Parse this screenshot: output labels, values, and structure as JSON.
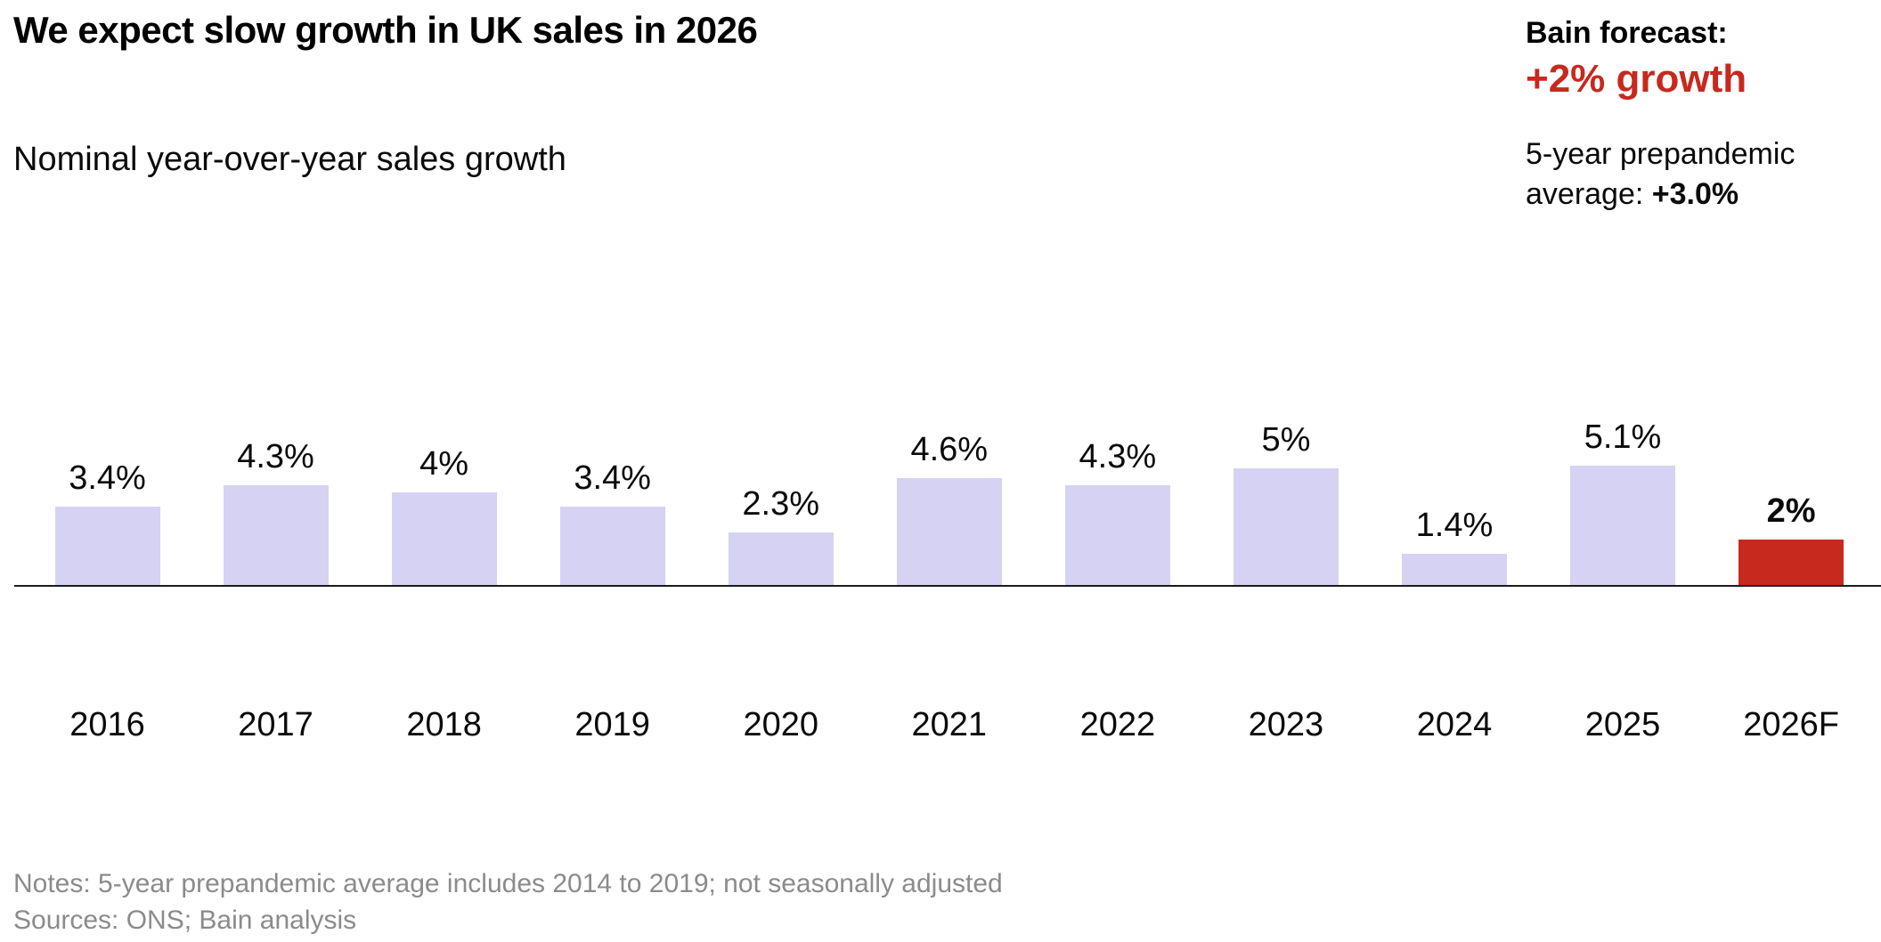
{
  "header": {
    "title": "We expect slow growth in UK sales in 2026",
    "subtitle": "Nominal year-over-year sales growth"
  },
  "annotation": {
    "forecast_label": "Bain forecast:",
    "forecast_value": "+2% growth",
    "average_line1": "5-year prepandemic",
    "average_line2_prefix": "average: ",
    "average_value": "+3.0%"
  },
  "chart_data": {
    "type": "bar",
    "title": "We expect slow growth in UK sales in 2026",
    "subtitle": "Nominal year-over-year sales growth",
    "categories": [
      "2016",
      "2017",
      "2018",
      "2019",
      "2020",
      "2021",
      "2022",
      "2023",
      "2024",
      "2025",
      "2026F"
    ],
    "values": [
      3.4,
      4.3,
      4,
      3.4,
      2.3,
      4.6,
      4.3,
      5,
      1.4,
      5.1,
      2
    ],
    "value_labels": [
      "3.4%",
      "4.3%",
      "4%",
      "3.4%",
      "2.3%",
      "4.6%",
      "4.3%",
      "5%",
      "1.4%",
      "5.1%",
      "2%"
    ],
    "highlight_index": 10,
    "xlabel": "",
    "ylabel": "",
    "ylim": [
      0,
      5.5
    ],
    "grid": false,
    "legend": "none",
    "bar_color": "#D5D2F3",
    "highlight_color": "#C7291E"
  },
  "colors": {
    "accent_red": "#C7291E",
    "bar_lavender": "#D5D2F3",
    "axis": "#1c1c1c",
    "muted_text": "#8b8b8b"
  },
  "footer": {
    "notes": "Notes: 5-year prepandemic average includes 2014 to 2019; not seasonally adjusted",
    "sources": "Sources: ONS; Bain analysis"
  }
}
